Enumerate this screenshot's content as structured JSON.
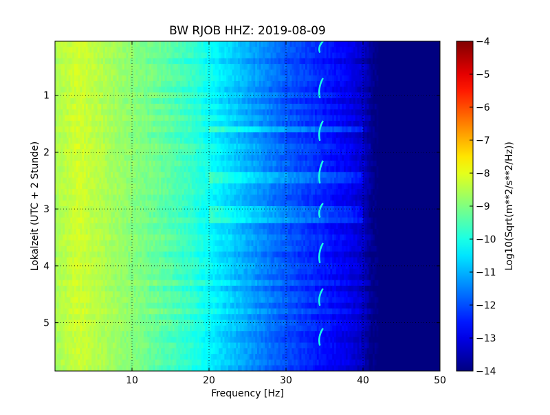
{
  "chart_data": {
    "type": "heatmap",
    "title": "BW RJOB HHZ: 2019-08-09",
    "xlabel": "Frequency [Hz]",
    "ylabel": "Lokalzeit (UTC + 2 Stunde)",
    "xlim": [
      0,
      50
    ],
    "ylim": [
      5.85,
      0.05
    ],
    "y_inverted": true,
    "x_ticks": [
      10,
      20,
      30,
      40,
      50
    ],
    "x_tick_labels": [
      "10",
      "20",
      "30",
      "40",
      "50"
    ],
    "y_ticks": [
      1,
      2,
      3,
      4,
      5
    ],
    "y_tick_labels": [
      "1",
      "2",
      "3",
      "4",
      "5"
    ],
    "grid": true,
    "colormap": "jet",
    "colorbar": {
      "label": "Log10(Sqrt(m**2/s**2/Hz))",
      "range": [
        -14,
        -4
      ],
      "ticks": [
        -4,
        -5,
        -6,
        -7,
        -8,
        -9,
        -10,
        -11,
        -12,
        -13,
        -14
      ],
      "tick_labels": [
        "−4",
        "−5",
        "−6",
        "−7",
        "−8",
        "−9",
        "−10",
        "−11",
        "−12",
        "−13",
        "−14"
      ]
    },
    "psd_profile": {
      "frequency_hz": [
        0,
        3,
        6,
        10,
        14,
        18,
        21,
        25,
        30,
        34,
        38,
        40,
        41,
        42,
        50
      ],
      "log10_amplitude": [
        -8.6,
        -8.2,
        -8.5,
        -8.9,
        -9.3,
        -9.8,
        -10.4,
        -11.1,
        -11.9,
        -12.4,
        -12.9,
        -13.3,
        -13.8,
        -14.0,
        -14.0
      ]
    },
    "tonal_line_hz": 34.5,
    "tonal_segments_hours": [
      [
        0.05,
        0.25
      ],
      [
        0.7,
        1.05
      ],
      [
        1.45,
        1.8
      ],
      [
        2.15,
        2.55
      ],
      [
        2.9,
        3.15
      ],
      [
        3.6,
        3.95
      ],
      [
        4.4,
        4.7
      ],
      [
        5.1,
        5.4
      ]
    ]
  }
}
